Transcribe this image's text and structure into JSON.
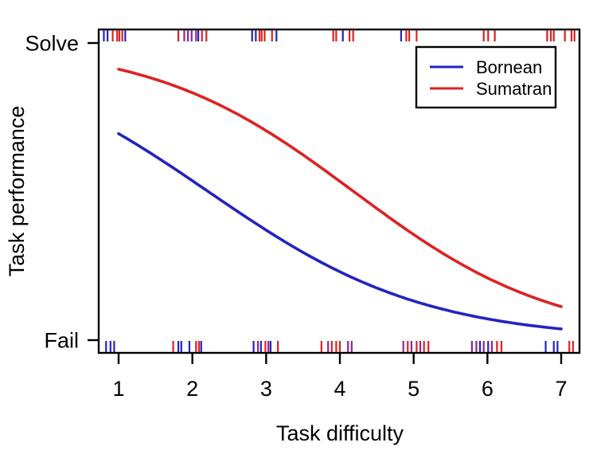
{
  "chart_data": {
    "type": "line",
    "title": "",
    "xlabel": "Task difficulty",
    "ylabel": "Task performance",
    "x_ticks": [
      1,
      2,
      3,
      4,
      5,
      6,
      7
    ],
    "y_ticks": [
      {
        "label": "Solve",
        "value": 1
      },
      {
        "label": "Fail",
        "value": 0
      }
    ],
    "xlim": [
      0.73,
      7.25
    ],
    "ylim": [
      -0.043,
      1.043
    ],
    "grid": false,
    "legend": {
      "position": "top-right",
      "entries": [
        {
          "label": "Bornean",
          "color": "#2323c0"
        },
        {
          "label": "Sumatran",
          "color": "#dd2222"
        }
      ]
    },
    "series": [
      {
        "name": "Bornean",
        "color": "#2323c0",
        "x_range": [
          1,
          7
        ],
        "logistic": {
          "intercept": 1.5,
          "slope": -0.677
        },
        "points": [
          [
            1,
            0.695
          ],
          [
            1.5,
            0.619
          ],
          [
            2,
            0.536
          ],
          [
            2.5,
            0.452
          ],
          [
            3,
            0.37
          ],
          [
            3.5,
            0.295
          ],
          [
            4,
            0.23
          ],
          [
            4.5,
            0.176
          ],
          [
            5,
            0.132
          ],
          [
            5.5,
            0.098
          ],
          [
            6,
            0.072
          ],
          [
            6.5,
            0.052
          ],
          [
            7,
            0.038
          ]
        ]
      },
      {
        "name": "Sumatran",
        "color": "#dd2222",
        "x_range": [
          1,
          7
        ],
        "logistic": {
          "intercept": 3.07,
          "slope": -0.733
        },
        "points": [
          [
            1,
            0.912
          ],
          [
            1.5,
            0.878
          ],
          [
            2,
            0.833
          ],
          [
            2.5,
            0.775
          ],
          [
            3,
            0.705
          ],
          [
            3.5,
            0.624
          ],
          [
            4,
            0.534
          ],
          [
            4.5,
            0.443
          ],
          [
            5,
            0.355
          ],
          [
            5.5,
            0.277
          ],
          [
            6,
            0.21
          ],
          [
            6.5,
            0.155
          ],
          [
            7,
            0.113
          ]
        ]
      }
    ],
    "rug": {
      "overlap_color": "#8c2890",
      "top_row_label": "Solve",
      "bottom_row_label": "Fail",
      "top": [
        {
          "x": 0.8,
          "g": "B"
        },
        {
          "x": 0.85,
          "g": "B"
        },
        {
          "x": 0.92,
          "g": "S"
        },
        {
          "x": 0.98,
          "g": "S"
        },
        {
          "x": 1.01,
          "g": "S"
        },
        {
          "x": 1.05,
          "g": "S"
        },
        {
          "x": 1.09,
          "g": "B"
        },
        {
          "x": 1.81,
          "g": "S"
        },
        {
          "x": 1.89,
          "g": "O"
        },
        {
          "x": 1.94,
          "g": "O"
        },
        {
          "x": 1.99,
          "g": "O"
        },
        {
          "x": 2.05,
          "g": "O"
        },
        {
          "x": 2.08,
          "g": "B"
        },
        {
          "x": 2.13,
          "g": "S"
        },
        {
          "x": 2.19,
          "g": "S"
        },
        {
          "x": 2.81,
          "g": "B"
        },
        {
          "x": 2.86,
          "g": "B"
        },
        {
          "x": 2.91,
          "g": "S"
        },
        {
          "x": 2.94,
          "g": "S"
        },
        {
          "x": 2.98,
          "g": "S"
        },
        {
          "x": 3.08,
          "g": "S"
        },
        {
          "x": 3.14,
          "g": "B"
        },
        {
          "x": 3.91,
          "g": "S"
        },
        {
          "x": 3.95,
          "g": "S"
        },
        {
          "x": 4.04,
          "g": "B"
        },
        {
          "x": 4.13,
          "g": "S"
        },
        {
          "x": 4.18,
          "g": "S"
        },
        {
          "x": 4.83,
          "g": "B"
        },
        {
          "x": 4.9,
          "g": "S"
        },
        {
          "x": 4.94,
          "g": "S"
        },
        {
          "x": 5.04,
          "g": "S"
        },
        {
          "x": 5.95,
          "g": "S"
        },
        {
          "x": 6.01,
          "g": "S"
        },
        {
          "x": 6.1,
          "g": "S"
        },
        {
          "x": 6.81,
          "g": "S"
        },
        {
          "x": 6.86,
          "g": "S"
        },
        {
          "x": 6.9,
          "g": "S"
        },
        {
          "x": 7.05,
          "g": "S"
        },
        {
          "x": 7.14,
          "g": "S"
        },
        {
          "x": 7.18,
          "g": "S"
        }
      ],
      "bottom": [
        {
          "x": 0.83,
          "g": "B"
        },
        {
          "x": 0.89,
          "g": "B"
        },
        {
          "x": 0.94,
          "g": "B"
        },
        {
          "x": 1.74,
          "g": "S"
        },
        {
          "x": 1.81,
          "g": "B"
        },
        {
          "x": 1.85,
          "g": "B"
        },
        {
          "x": 1.96,
          "g": "B"
        },
        {
          "x": 2.05,
          "g": "S"
        },
        {
          "x": 2.09,
          "g": "S"
        },
        {
          "x": 2.12,
          "g": "B"
        },
        {
          "x": 2.83,
          "g": "B"
        },
        {
          "x": 2.89,
          "g": "O"
        },
        {
          "x": 2.93,
          "g": "B"
        },
        {
          "x": 2.99,
          "g": "S"
        },
        {
          "x": 3.03,
          "g": "O"
        },
        {
          "x": 3.06,
          "g": "B"
        },
        {
          "x": 3.16,
          "g": "S"
        },
        {
          "x": 3.75,
          "g": "S"
        },
        {
          "x": 3.84,
          "g": "O"
        },
        {
          "x": 3.89,
          "g": "S"
        },
        {
          "x": 3.95,
          "g": "S"
        },
        {
          "x": 4.0,
          "g": "S"
        },
        {
          "x": 4.11,
          "g": "O"
        },
        {
          "x": 4.16,
          "g": "O"
        },
        {
          "x": 4.86,
          "g": "O"
        },
        {
          "x": 4.92,
          "g": "S"
        },
        {
          "x": 4.97,
          "g": "O"
        },
        {
          "x": 5.04,
          "g": "S"
        },
        {
          "x": 5.09,
          "g": "O"
        },
        {
          "x": 5.14,
          "g": "S"
        },
        {
          "x": 5.2,
          "g": "S"
        },
        {
          "x": 5.79,
          "g": "O"
        },
        {
          "x": 5.85,
          "g": "O"
        },
        {
          "x": 5.9,
          "g": "B"
        },
        {
          "x": 5.95,
          "g": "O"
        },
        {
          "x": 6.01,
          "g": "B"
        },
        {
          "x": 6.06,
          "g": "O"
        },
        {
          "x": 6.13,
          "g": "S"
        },
        {
          "x": 6.19,
          "g": "S"
        },
        {
          "x": 6.79,
          "g": "B"
        },
        {
          "x": 6.9,
          "g": "B"
        },
        {
          "x": 6.95,
          "g": "B"
        },
        {
          "x": 7.11,
          "g": "S"
        },
        {
          "x": 7.16,
          "g": "S"
        }
      ]
    }
  }
}
